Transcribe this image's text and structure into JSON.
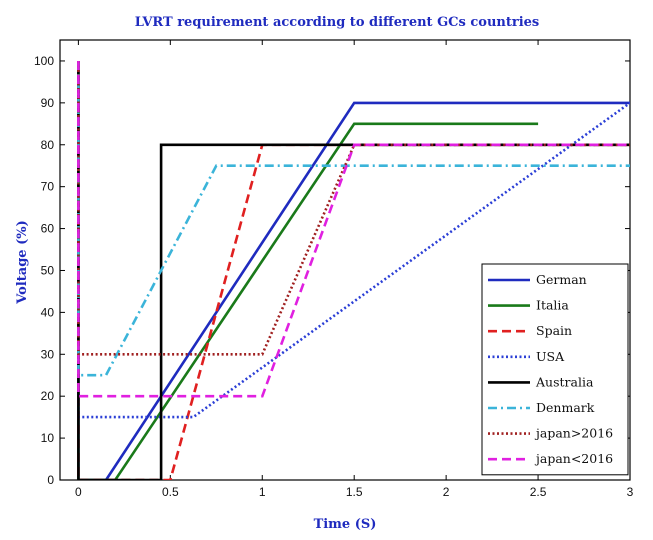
{
  "chart_data": {
    "type": "line",
    "title": "LVRT requirement according to different GCs countries",
    "xlabel": "Time (S)",
    "ylabel": "Voltage (%)",
    "xlim": [
      -0.1,
      3
    ],
    "ylim": [
      0,
      105
    ],
    "xticks": [
      0,
      0.5,
      1,
      1.5,
      2,
      2.5,
      3
    ],
    "xtick_labels": [
      "0",
      "0.5",
      "1",
      "1.5",
      "2",
      "2.5",
      "3"
    ],
    "yticks": [
      0,
      10,
      20,
      30,
      40,
      50,
      60,
      70,
      80,
      90,
      100
    ],
    "ytick_labels": [
      "0",
      "10",
      "20",
      "30",
      "40",
      "50",
      "60",
      "70",
      "80",
      "90",
      "100"
    ],
    "grid": false,
    "legend_position": "right-bottom",
    "series": [
      {
        "name": "German",
        "color": "#1f2bbf",
        "dash": "solid",
        "x": [
          0,
          0,
          0.15,
          1.5,
          3
        ],
        "y": [
          100,
          0,
          0,
          90,
          90
        ]
      },
      {
        "name": "Italia",
        "color": "#1a7a1a",
        "dash": "solid",
        "x": [
          0,
          0,
          0.2,
          1.5,
          2.5
        ],
        "y": [
          100,
          0,
          0,
          85,
          85
        ]
      },
      {
        "name": "Spain",
        "color": "#e02020",
        "dash": "dashed",
        "x": [
          0,
          0,
          0.5,
          1,
          1.5,
          3
        ],
        "y": [
          100,
          0,
          0,
          80,
          80,
          80
        ]
      },
      {
        "name": "USA",
        "color": "#2b3fd6",
        "dash": "dotted",
        "x": [
          0,
          0,
          0.625,
          3
        ],
        "y": [
          100,
          15,
          15,
          90
        ]
      },
      {
        "name": "Australia",
        "color": "#000000",
        "dash": "solid",
        "x": [
          0,
          0,
          0.45,
          0.45,
          1.5,
          3
        ],
        "y": [
          100,
          0,
          0,
          80,
          80,
          80
        ]
      },
      {
        "name": "Denmark",
        "color": "#3bb4d9",
        "dash": "dashdot",
        "x": [
          0,
          0,
          0.15,
          0.75,
          3
        ],
        "y": [
          100,
          25,
          25,
          75,
          75
        ]
      },
      {
        "name": "japan>2016",
        "color": "#a02020",
        "dash": "dotted",
        "x": [
          0,
          0,
          1,
          1.5,
          3
        ],
        "y": [
          100,
          30,
          30,
          80,
          80
        ]
      },
      {
        "name": "japan<2016",
        "color": "#e020e0",
        "dash": "dashed",
        "x": [
          0,
          0,
          1,
          1.5,
          3
        ],
        "y": [
          100,
          20,
          20,
          80,
          80
        ]
      }
    ]
  }
}
